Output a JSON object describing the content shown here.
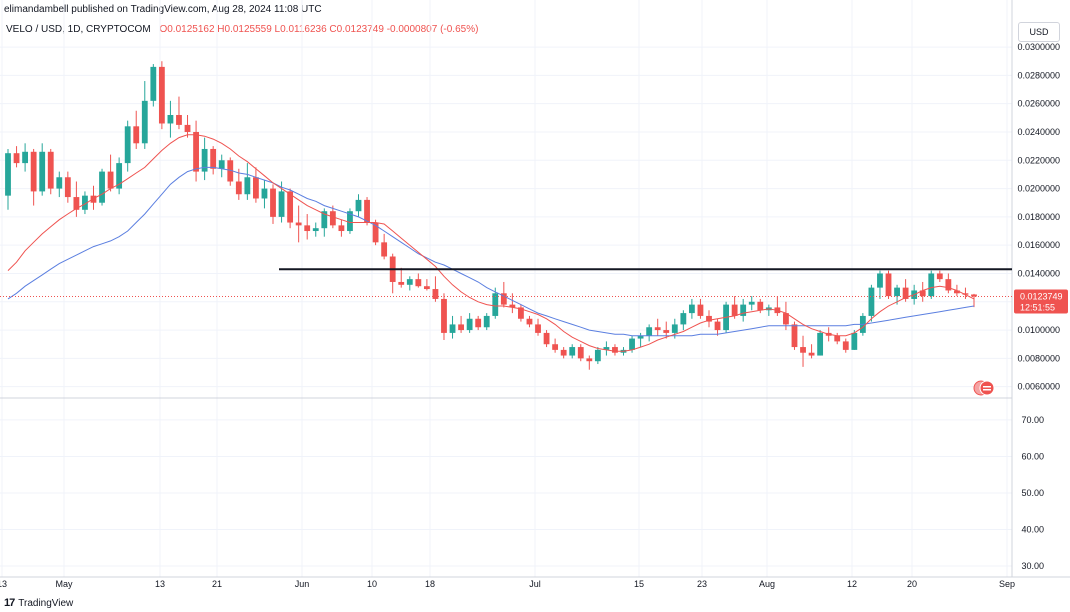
{
  "header": {
    "publisher": "elimandambell published on TradingView.com, Aug 28, 2024 11:08 UTC",
    "symbol": "VELO / USD, 1D, CRYPTOCOM",
    "ohlc": "O0.0125162  H0.0125559  L0.0116236  C0.0123749  -0.0000807 (-0.65%)"
  },
  "currency_button": "USD",
  "price_label": {
    "price": "0.0123749",
    "countdown": "12:51:55"
  },
  "footer": {
    "logo": "17",
    "brand": "TradingView"
  },
  "colors": {
    "up": "#26a69a",
    "down": "#ef5350",
    "ma_fast": "#ef5350",
    "ma_slow": "#5b7fe0",
    "resistance": "#131722",
    "grid": "#f0f3fa"
  },
  "chart_data": [
    {
      "type": "candlestick",
      "title": "VELO / USD, 1D, CRYPTOCOM",
      "x_tick_labels": [
        "13",
        "May",
        "13",
        "21",
        "Jun",
        "10",
        "18",
        "Jul",
        "15",
        "23",
        "Aug",
        "12",
        "20",
        "Sep"
      ],
      "y_tick_labels": [
        "0.0060000",
        "0.0080000",
        "0.0100000",
        "0.0120000",
        "0.0140000",
        "0.0160000",
        "0.0180000",
        "0.0200000",
        "0.0220000",
        "0.0240000",
        "0.0260000",
        "0.0280000",
        "0.0300000"
      ],
      "ylim": [
        0.0052,
        0.0305
      ],
      "grid": true,
      "resistance_level": 0.0143,
      "last_close": 0.0123749,
      "candles_ohlc": [
        [
          0.0195,
          0.0228,
          0.0185,
          0.0225
        ],
        [
          0.0225,
          0.023,
          0.0215,
          0.0218
        ],
        [
          0.0218,
          0.0232,
          0.0212,
          0.0226
        ],
        [
          0.0226,
          0.0228,
          0.0188,
          0.0198
        ],
        [
          0.0198,
          0.0232,
          0.0195,
          0.0226
        ],
        [
          0.0226,
          0.0228,
          0.0196,
          0.02
        ],
        [
          0.02,
          0.0212,
          0.0194,
          0.0208
        ],
        [
          0.0208,
          0.0212,
          0.019,
          0.0194
        ],
        [
          0.0194,
          0.0205,
          0.018,
          0.0185
        ],
        [
          0.0185,
          0.0198,
          0.0182,
          0.0195
        ],
        [
          0.0195,
          0.0202,
          0.0185,
          0.019
        ],
        [
          0.019,
          0.0214,
          0.0188,
          0.0212
        ],
        [
          0.0212,
          0.0224,
          0.0198,
          0.02
        ],
        [
          0.02,
          0.0222,
          0.0196,
          0.0218
        ],
        [
          0.0218,
          0.0248,
          0.0212,
          0.0244
        ],
        [
          0.0244,
          0.0255,
          0.0228,
          0.0232
        ],
        [
          0.0232,
          0.0276,
          0.0228,
          0.0262
        ],
        [
          0.0262,
          0.0288,
          0.0258,
          0.0286
        ],
        [
          0.0286,
          0.029,
          0.0242,
          0.0246
        ],
        [
          0.0246,
          0.0262,
          0.0236,
          0.0252
        ],
        [
          0.0252,
          0.0265,
          0.0242,
          0.0245
        ],
        [
          0.0245,
          0.0252,
          0.0236,
          0.024
        ],
        [
          0.024,
          0.0248,
          0.0205,
          0.0212
        ],
        [
          0.0212,
          0.0236,
          0.0206,
          0.0228
        ],
        [
          0.0228,
          0.023,
          0.021,
          0.0214
        ],
        [
          0.0214,
          0.0224,
          0.0208,
          0.022
        ],
        [
          0.022,
          0.0222,
          0.0202,
          0.0205
        ],
        [
          0.0205,
          0.0214,
          0.0192,
          0.0196
        ],
        [
          0.0196,
          0.0218,
          0.0192,
          0.0208
        ],
        [
          0.0208,
          0.0215,
          0.019,
          0.0193
        ],
        [
          0.0193,
          0.0206,
          0.0186,
          0.02
        ],
        [
          0.02,
          0.0203,
          0.0175,
          0.018
        ],
        [
          0.018,
          0.0205,
          0.0176,
          0.0198
        ],
        [
          0.0198,
          0.02,
          0.0172,
          0.0176
        ],
        [
          0.0176,
          0.0188,
          0.0162,
          0.0174
        ],
        [
          0.0174,
          0.0182,
          0.0164,
          0.017
        ],
        [
          0.017,
          0.0176,
          0.0166,
          0.0172
        ],
        [
          0.0172,
          0.0186,
          0.0166,
          0.0184
        ],
        [
          0.0184,
          0.0188,
          0.0172,
          0.0174
        ],
        [
          0.0174,
          0.0178,
          0.0166,
          0.017
        ],
        [
          0.017,
          0.0186,
          0.0168,
          0.0184
        ],
        [
          0.0184,
          0.0196,
          0.018,
          0.0192
        ],
        [
          0.0192,
          0.0194,
          0.0174,
          0.0176
        ],
        [
          0.0176,
          0.0178,
          0.016,
          0.0162
        ],
        [
          0.0162,
          0.0168,
          0.015,
          0.0152
        ],
        [
          0.0152,
          0.0154,
          0.0126,
          0.0134
        ],
        [
          0.0134,
          0.0144,
          0.013,
          0.0132
        ],
        [
          0.0132,
          0.0138,
          0.0128,
          0.0136
        ],
        [
          0.0136,
          0.014,
          0.013,
          0.0131
        ],
        [
          0.0131,
          0.0136,
          0.0128,
          0.0129
        ],
        [
          0.0129,
          0.0138,
          0.012,
          0.0122
        ],
        [
          0.0122,
          0.0126,
          0.0093,
          0.0098
        ],
        [
          0.0098,
          0.011,
          0.0094,
          0.0104
        ],
        [
          0.0104,
          0.011,
          0.0098,
          0.01
        ],
        [
          0.01,
          0.0112,
          0.0098,
          0.0108
        ],
        [
          0.0108,
          0.011,
          0.01,
          0.0102
        ],
        [
          0.0102,
          0.0112,
          0.01,
          0.011
        ],
        [
          0.011,
          0.013,
          0.0108,
          0.0126
        ],
        [
          0.0126,
          0.0134,
          0.0116,
          0.0118
        ],
        [
          0.0118,
          0.0126,
          0.0112,
          0.0116
        ],
        [
          0.0116,
          0.0118,
          0.0106,
          0.0108
        ],
        [
          0.0108,
          0.011,
          0.0102,
          0.0104
        ],
        [
          0.0104,
          0.0108,
          0.0096,
          0.0098
        ],
        [
          0.0098,
          0.01,
          0.0088,
          0.009
        ],
        [
          0.009,
          0.0094,
          0.0084,
          0.0086
        ],
        [
          0.0086,
          0.0088,
          0.008,
          0.0082
        ],
        [
          0.0082,
          0.009,
          0.008,
          0.0088
        ],
        [
          0.0088,
          0.009,
          0.0078,
          0.008
        ],
        [
          0.008,
          0.0082,
          0.0072,
          0.0078
        ],
        [
          0.0078,
          0.0088,
          0.0076,
          0.0086
        ],
        [
          0.0086,
          0.0092,
          0.0082,
          0.0088
        ],
        [
          0.0088,
          0.009,
          0.0082,
          0.0084
        ],
        [
          0.0084,
          0.0088,
          0.0082,
          0.0086
        ],
        [
          0.0086,
          0.0096,
          0.0084,
          0.0094
        ],
        [
          0.0094,
          0.0098,
          0.0088,
          0.0096
        ],
        [
          0.0096,
          0.0104,
          0.0092,
          0.0102
        ],
        [
          0.0102,
          0.0108,
          0.0096,
          0.01
        ],
        [
          0.01,
          0.0106,
          0.0094,
          0.0098
        ],
        [
          0.0098,
          0.0108,
          0.0094,
          0.0104
        ],
        [
          0.0104,
          0.0114,
          0.01,
          0.0112
        ],
        [
          0.0112,
          0.0122,
          0.0108,
          0.0118
        ],
        [
          0.0118,
          0.0122,
          0.0108,
          0.011
        ],
        [
          0.011,
          0.0114,
          0.0102,
          0.0106
        ],
        [
          0.0106,
          0.0108,
          0.0096,
          0.01
        ],
        [
          0.01,
          0.012,
          0.0098,
          0.0118
        ],
        [
          0.0118,
          0.0124,
          0.0108,
          0.011
        ],
        [
          0.011,
          0.0122,
          0.0106,
          0.0118
        ],
        [
          0.0118,
          0.0124,
          0.0114,
          0.012
        ],
        [
          0.012,
          0.0122,
          0.0112,
          0.0114
        ],
        [
          0.0114,
          0.0118,
          0.011,
          0.0116
        ],
        [
          0.0116,
          0.0124,
          0.011,
          0.0112
        ],
        [
          0.0112,
          0.012,
          0.01,
          0.0104
        ],
        [
          0.0104,
          0.0106,
          0.0086,
          0.0088
        ],
        [
          0.0088,
          0.0096,
          0.0074,
          0.0084
        ],
        [
          0.0084,
          0.009,
          0.008,
          0.0082
        ],
        [
          0.0082,
          0.01,
          0.0082,
          0.0098
        ],
        [
          0.0098,
          0.0102,
          0.0092,
          0.0096
        ],
        [
          0.0096,
          0.0098,
          0.009,
          0.0092
        ],
        [
          0.0092,
          0.0094,
          0.0084,
          0.0086
        ],
        [
          0.0086,
          0.01,
          0.0086,
          0.0098
        ],
        [
          0.0098,
          0.0112,
          0.0096,
          0.011
        ],
        [
          0.011,
          0.0132,
          0.0106,
          0.013
        ],
        [
          0.013,
          0.0142,
          0.0122,
          0.014
        ],
        [
          0.014,
          0.0142,
          0.0122,
          0.0124
        ],
        [
          0.0124,
          0.0132,
          0.0118,
          0.013
        ],
        [
          0.013,
          0.0136,
          0.012,
          0.0122
        ],
        [
          0.0122,
          0.0132,
          0.0118,
          0.0128
        ],
        [
          0.0128,
          0.0134,
          0.012,
          0.0124
        ],
        [
          0.0124,
          0.0142,
          0.0122,
          0.014
        ],
        [
          0.014,
          0.0142,
          0.0134,
          0.0136
        ],
        [
          0.0136,
          0.014,
          0.0126,
          0.0128
        ],
        [
          0.0128,
          0.0132,
          0.0124,
          0.0126
        ],
        [
          0.0126,
          0.013,
          0.0122,
          0.0125
        ],
        [
          0.0125162,
          0.0125559,
          0.0116236,
          0.0123749
        ]
      ],
      "ma_fast": [
        0.0142,
        0.0148,
        0.0156,
        0.0162,
        0.0168,
        0.0173,
        0.0178,
        0.0182,
        0.0186,
        0.0189,
        0.0193,
        0.0196,
        0.02,
        0.0203,
        0.0207,
        0.0211,
        0.0215,
        0.0221,
        0.0227,
        0.0232,
        0.0236,
        0.0238,
        0.0238,
        0.0237,
        0.0235,
        0.0232,
        0.0228,
        0.0223,
        0.0219,
        0.0214,
        0.0209,
        0.0204,
        0.02,
        0.0196,
        0.0192,
        0.0188,
        0.0185,
        0.0182,
        0.018,
        0.0178,
        0.0176,
        0.0176,
        0.0176,
        0.0176,
        0.0175,
        0.017,
        0.0165,
        0.016,
        0.0155,
        0.015,
        0.0145,
        0.0138,
        0.0132,
        0.0127,
        0.0123,
        0.012,
        0.0118,
        0.0117,
        0.0117,
        0.0116,
        0.0115,
        0.0113,
        0.0111,
        0.0108,
        0.0104,
        0.0099,
        0.0095,
        0.0092,
        0.0089,
        0.0087,
        0.0086,
        0.0085,
        0.0085,
        0.0086,
        0.0088,
        0.009,
        0.0093,
        0.0095,
        0.0097,
        0.0099,
        0.0102,
        0.0105,
        0.0107,
        0.0108,
        0.0109,
        0.011,
        0.0112,
        0.0113,
        0.0114,
        0.0115,
        0.0114,
        0.0112,
        0.0108,
        0.0104,
        0.0101,
        0.0099,
        0.0097,
        0.0096,
        0.0096,
        0.0098,
        0.0102,
        0.0108,
        0.0113,
        0.0117,
        0.012,
        0.0123,
        0.0125,
        0.0128,
        0.013,
        0.0131,
        0.013,
        0.0128,
        0.0125,
        0.0122
      ],
      "ma_slow": [
        0.0122,
        0.0126,
        0.0131,
        0.0135,
        0.0139,
        0.0143,
        0.0147,
        0.015,
        0.0153,
        0.0156,
        0.0159,
        0.0161,
        0.0163,
        0.0166,
        0.017,
        0.0176,
        0.0182,
        0.0189,
        0.0196,
        0.0203,
        0.0208,
        0.0212,
        0.0214,
        0.0215,
        0.0215,
        0.0214,
        0.0213,
        0.0211,
        0.021,
        0.0208,
        0.0206,
        0.0204,
        0.0201,
        0.0199,
        0.0196,
        0.0193,
        0.0191,
        0.0188,
        0.0186,
        0.0184,
        0.0182,
        0.018,
        0.0177,
        0.0174,
        0.017,
        0.0166,
        0.0162,
        0.0158,
        0.0154,
        0.0151,
        0.0148,
        0.0146,
        0.0143,
        0.014,
        0.0137,
        0.0134,
        0.013,
        0.0127,
        0.0124,
        0.0121,
        0.0118,
        0.0115,
        0.0112,
        0.011,
        0.0108,
        0.0106,
        0.0104,
        0.0102,
        0.01,
        0.0099,
        0.0098,
        0.0097,
        0.0097,
        0.0096,
        0.0096,
        0.0096,
        0.0096,
        0.0096,
        0.0096,
        0.0096,
        0.0096,
        0.0097,
        0.0097,
        0.0097,
        0.0098,
        0.0099,
        0.01,
        0.0101,
        0.0102,
        0.0103,
        0.0103,
        0.0103,
        0.0103,
        0.0103,
        0.0103,
        0.0103,
        0.0103,
        0.0103,
        0.0103,
        0.0104,
        0.0104,
        0.0105,
        0.0106,
        0.0107,
        0.0108,
        0.0109,
        0.011,
        0.0111,
        0.0112,
        0.0113,
        0.0114,
        0.0115,
        0.0116,
        0.0117
      ]
    },
    {
      "type": "line",
      "y_tick_labels": [
        "30.00",
        "40.00",
        "50.00",
        "60.00",
        "70.00"
      ],
      "ylim": [
        27,
        76
      ]
    }
  ]
}
